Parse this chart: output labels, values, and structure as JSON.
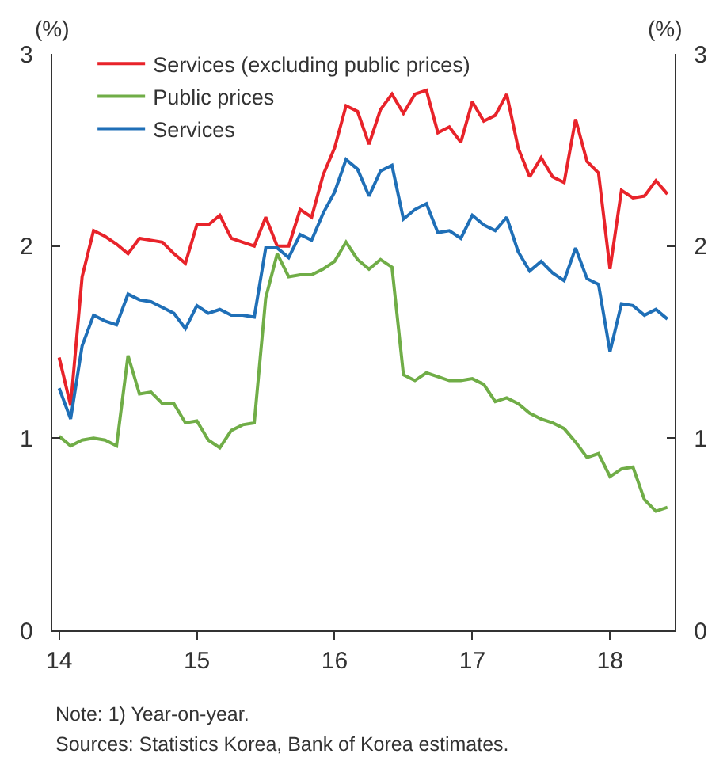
{
  "chart_data": {
    "type": "line",
    "x": [
      14.0,
      14.0833,
      14.1667,
      14.25,
      14.3333,
      14.4167,
      14.5,
      14.5833,
      14.6667,
      14.75,
      14.8333,
      14.9167,
      15.0,
      15.0833,
      15.1667,
      15.25,
      15.3333,
      15.4167,
      15.5,
      15.5833,
      15.6667,
      15.75,
      15.8333,
      15.9167,
      16.0,
      16.0833,
      16.1667,
      16.25,
      16.3333,
      16.4167,
      16.5,
      16.5833,
      16.6667,
      16.75,
      16.8333,
      16.9167,
      17.0,
      17.0833,
      17.1667,
      17.25,
      17.3333,
      17.4167,
      17.5,
      17.5833,
      17.6667,
      17.75,
      17.8333,
      17.9167,
      18.0,
      18.0833,
      18.1667,
      18.25,
      18.3333,
      18.4167
    ],
    "series": [
      {
        "name": "Services (excluding public prices)",
        "color": "#e8232a",
        "values": [
          1.42,
          1.17,
          1.84,
          2.08,
          2.05,
          2.01,
          1.96,
          2.04,
          2.03,
          2.02,
          1.96,
          1.91,
          2.11,
          2.11,
          2.16,
          2.04,
          2.02,
          2.0,
          2.15,
          2.0,
          2.0,
          2.19,
          2.15,
          2.37,
          2.51,
          2.73,
          2.7,
          2.53,
          2.71,
          2.79,
          2.69,
          2.79,
          2.81,
          2.59,
          2.62,
          2.54,
          2.75,
          2.65,
          2.68,
          2.79,
          2.51,
          2.36,
          2.46,
          2.36,
          2.33,
          2.66,
          2.44,
          2.38,
          1.88,
          2.29,
          2.25,
          2.26,
          2.34,
          2.27
        ]
      },
      {
        "name": "Public prices",
        "color": "#70ad47",
        "values": [
          1.01,
          0.96,
          0.99,
          1.0,
          0.99,
          0.96,
          1.43,
          1.23,
          1.24,
          1.18,
          1.18,
          1.08,
          1.09,
          0.99,
          0.95,
          1.04,
          1.07,
          1.08,
          1.73,
          1.96,
          1.84,
          1.85,
          1.85,
          1.88,
          1.92,
          2.02,
          1.93,
          1.88,
          1.93,
          1.89,
          1.33,
          1.3,
          1.34,
          1.32,
          1.3,
          1.3,
          1.31,
          1.28,
          1.19,
          1.21,
          1.18,
          1.13,
          1.1,
          1.08,
          1.05,
          0.98,
          0.9,
          0.92,
          0.8,
          0.84,
          0.85,
          0.68,
          0.62,
          0.64
        ]
      },
      {
        "name": "Services",
        "color": "#1f6fb7",
        "values": [
          1.26,
          1.1,
          1.48,
          1.64,
          1.61,
          1.59,
          1.75,
          1.72,
          1.71,
          1.68,
          1.65,
          1.57,
          1.69,
          1.65,
          1.67,
          1.64,
          1.64,
          1.63,
          1.99,
          1.99,
          1.94,
          2.06,
          2.03,
          2.17,
          2.28,
          2.45,
          2.4,
          2.26,
          2.39,
          2.42,
          2.14,
          2.19,
          2.22,
          2.07,
          2.08,
          2.04,
          2.16,
          2.11,
          2.08,
          2.15,
          1.97,
          1.87,
          1.92,
          1.86,
          1.82,
          1.99,
          1.83,
          1.8,
          1.45,
          1.7,
          1.69,
          1.64,
          1.67,
          1.62
        ]
      }
    ],
    "xlim": [
      13.95,
      18.47
    ],
    "xticks": [
      {
        "value": 14,
        "label": "14"
      },
      {
        "value": 15,
        "label": "15"
      },
      {
        "value": 16,
        "label": "16"
      },
      {
        "value": 17,
        "label": "17"
      },
      {
        "value": 18,
        "label": "18"
      }
    ],
    "ylim": [
      0,
      3
    ],
    "yticks": [
      0,
      1,
      2,
      3
    ],
    "y2lim": [
      0,
      3
    ],
    "y2ticks": [
      0,
      1,
      2,
      3
    ],
    "ylabel": "(%)",
    "y2label": "(%)",
    "legend": "top left",
    "marker": "none",
    "line_style": "solid",
    "annotations": [
      "Note: 1) Year-on-year.",
      "Sources: Statistics Korea, Bank of Korea estimates."
    ]
  }
}
